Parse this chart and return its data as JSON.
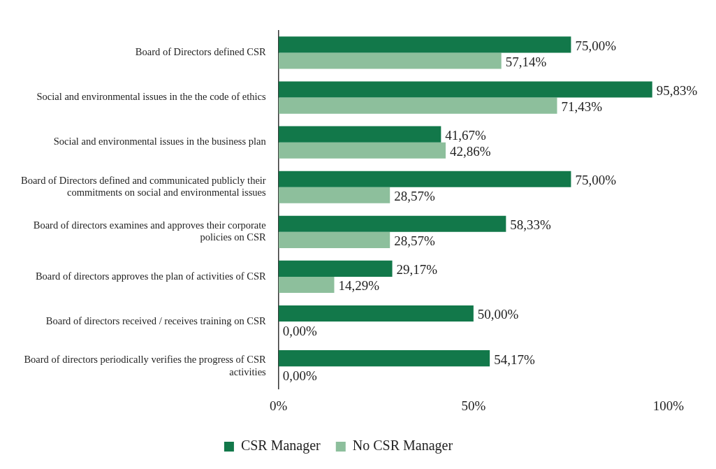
{
  "chart_data": {
    "type": "bar",
    "orientation": "horizontal",
    "categories": [
      "Board of Directors defined CSR",
      "Social and environmental issues in the the code of ethics",
      "Social and environmental issues in the business plan",
      "Board of Directors defined and communicated publicly their commitments on social and environmental issues",
      "Board of directors examines and approves their corporate policies on CSR",
      "Board of directors approves the plan of activities of CSR",
      "Board of directors received / receives training on CSR",
      "Board of directors periodically verifies the progress of CSR activities"
    ],
    "series": [
      {
        "name": "CSR Manager",
        "color": "#12784a",
        "values": [
          75,
          95.83,
          41.67,
          75,
          58.33,
          29.17,
          50,
          54.17
        ],
        "value_labels": [
          "75,00%",
          "95,83%",
          "41,67%",
          "75,00%",
          "58,33%",
          "29,17%",
          "50,00%",
          "54,17%"
        ]
      },
      {
        "name": "No CSR Manager",
        "color": "#8dbf9c",
        "values": [
          57.14,
          71.43,
          42.86,
          28.57,
          28.57,
          14.29,
          0,
          0
        ],
        "value_labels": [
          "57,14%",
          "71,43%",
          "42,86%",
          "28,57%",
          "28,57%",
          "14,29%",
          "0,00%",
          "0,00%"
        ]
      }
    ],
    "xlim": [
      0,
      100
    ],
    "xticks": [
      {
        "value": 0,
        "label": "0%"
      },
      {
        "value": 50,
        "label": "50%"
      },
      {
        "value": 100,
        "label": "100%"
      }
    ],
    "grid": false,
    "legend": "bottom"
  }
}
